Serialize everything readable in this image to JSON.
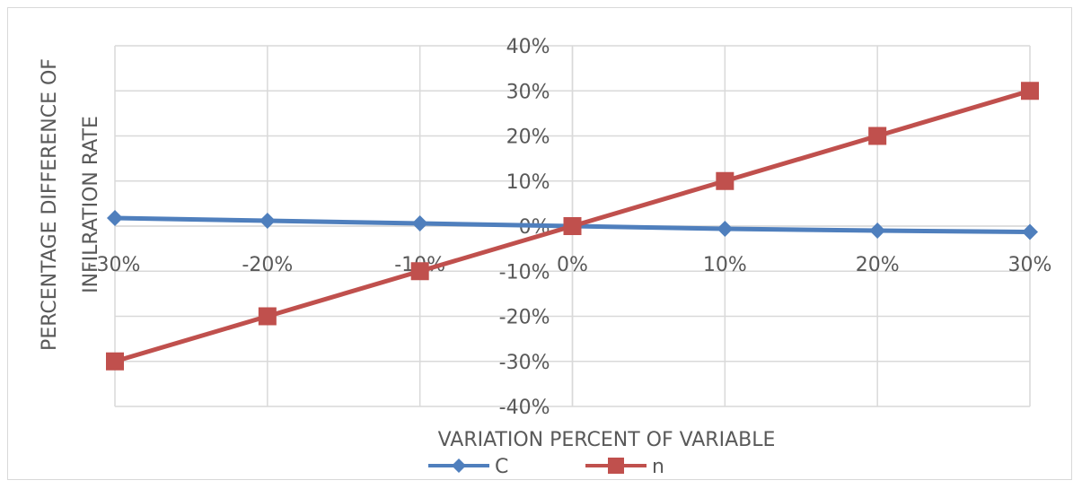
{
  "chart_data": {
    "type": "line",
    "x": [
      "-30%",
      "-20%",
      "-10%",
      "0%",
      "10%",
      "20%",
      "30%"
    ],
    "x_values": [
      -30,
      -20,
      -10,
      0,
      10,
      20,
      30
    ],
    "y_ticks": [
      "40%",
      "30%",
      "20%",
      "10%",
      "0%",
      "-10%",
      "-20%",
      "-30%",
      "-40%"
    ],
    "ylim": [
      -40,
      40
    ],
    "y_step": 10,
    "xlabel": "VARIATION PERCENT OF VARIABLE",
    "ylabel_lines": [
      "PERCENTAGE DIFFERENCE OF",
      "INFILRATION RATE"
    ],
    "grid": true,
    "legend_position": "bottom",
    "series": [
      {
        "name": "C",
        "color": "#4f7fbd",
        "marker": "diamond",
        "values": [
          1.8,
          1.2,
          0.6,
          0,
          -0.6,
          -1.0,
          -1.3
        ]
      },
      {
        "name": "n",
        "color": "#c0504d",
        "marker": "square",
        "values": [
          -30,
          -20,
          -10,
          0,
          10,
          20,
          30
        ]
      }
    ]
  }
}
